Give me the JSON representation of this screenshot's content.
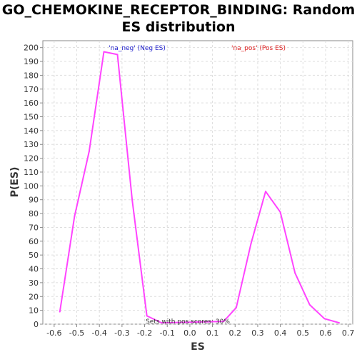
{
  "chart_data": {
    "type": "line",
    "title": "GO_CHEMOKINE_RECEPTOR_BINDING: Random ES distribution",
    "xlabel": "ES",
    "ylabel": "P(ES)",
    "xlim": [
      -0.65,
      0.72
    ],
    "ylim": [
      0,
      205
    ],
    "x_ticks": [
      -0.6,
      -0.5,
      -0.4,
      -0.3,
      -0.2,
      -0.1,
      0.0,
      0.1,
      0.2,
      0.3,
      0.4,
      0.5,
      0.6,
      0.7
    ],
    "y_ticks": [
      0,
      10,
      20,
      30,
      40,
      50,
      60,
      70,
      80,
      90,
      100,
      110,
      120,
      130,
      140,
      150,
      160,
      170,
      180,
      190,
      200
    ],
    "grid": true,
    "series": [
      {
        "name": "Random ES",
        "color": "#ff44ff",
        "x": [
          -0.575,
          -0.51,
          -0.445,
          -0.38,
          -0.32,
          -0.255,
          -0.19,
          -0.125,
          0.15,
          0.205,
          0.27,
          0.335,
          0.4,
          0.465,
          0.53,
          0.595,
          0.66
        ],
        "y": [
          9,
          78,
          125,
          197,
          195,
          90,
          6,
          1,
          2,
          12,
          58,
          96,
          81,
          37,
          14,
          4,
          1
        ]
      }
    ],
    "legend": [
      {
        "label": "'na_neg' (Neg ES)",
        "color": "#2222cc"
      },
      {
        "label": "'na_pos' (Pos ES)",
        "color": "#dd2222"
      }
    ],
    "annotation": "Sets with pos scores: 30%"
  }
}
